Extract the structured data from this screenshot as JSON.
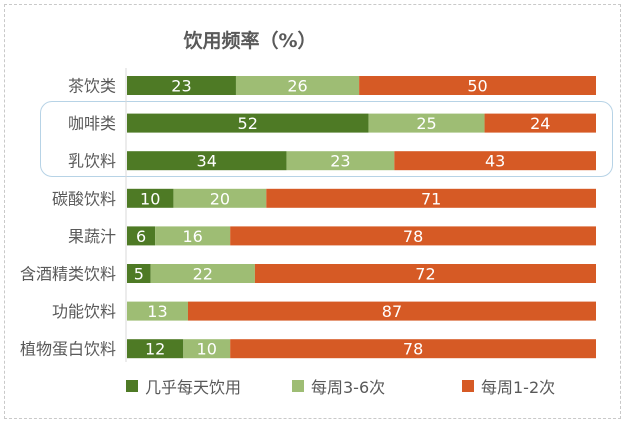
{
  "chart_data": {
    "type": "bar",
    "orientation": "horizontal",
    "stacked": true,
    "title": "饮用频率（%）",
    "categories": [
      "茶饮类",
      "咖啡类",
      "乳饮料",
      "碳酸饮料",
      "果蔬汁",
      "含酒精类饮料",
      "功能饮料",
      "植物蛋白饮料"
    ],
    "series": [
      {
        "name": "几乎每天饮用",
        "color": "#4e7a25",
        "values": [
          23,
          52,
          34,
          10,
          6,
          5,
          0,
          12
        ]
      },
      {
        "name": "每周3-6次",
        "color": "#9ebd74",
        "values": [
          26,
          25,
          23,
          20,
          16,
          22,
          13,
          10
        ]
      },
      {
        "name": "每周1-2次",
        "color": "#d65a25",
        "values": [
          50,
          24,
          43,
          71,
          78,
          72,
          87,
          78
        ]
      }
    ],
    "highlighted_categories": [
      "咖啡类",
      "乳饮料"
    ],
    "legend_position": "bottom",
    "grid": false
  }
}
